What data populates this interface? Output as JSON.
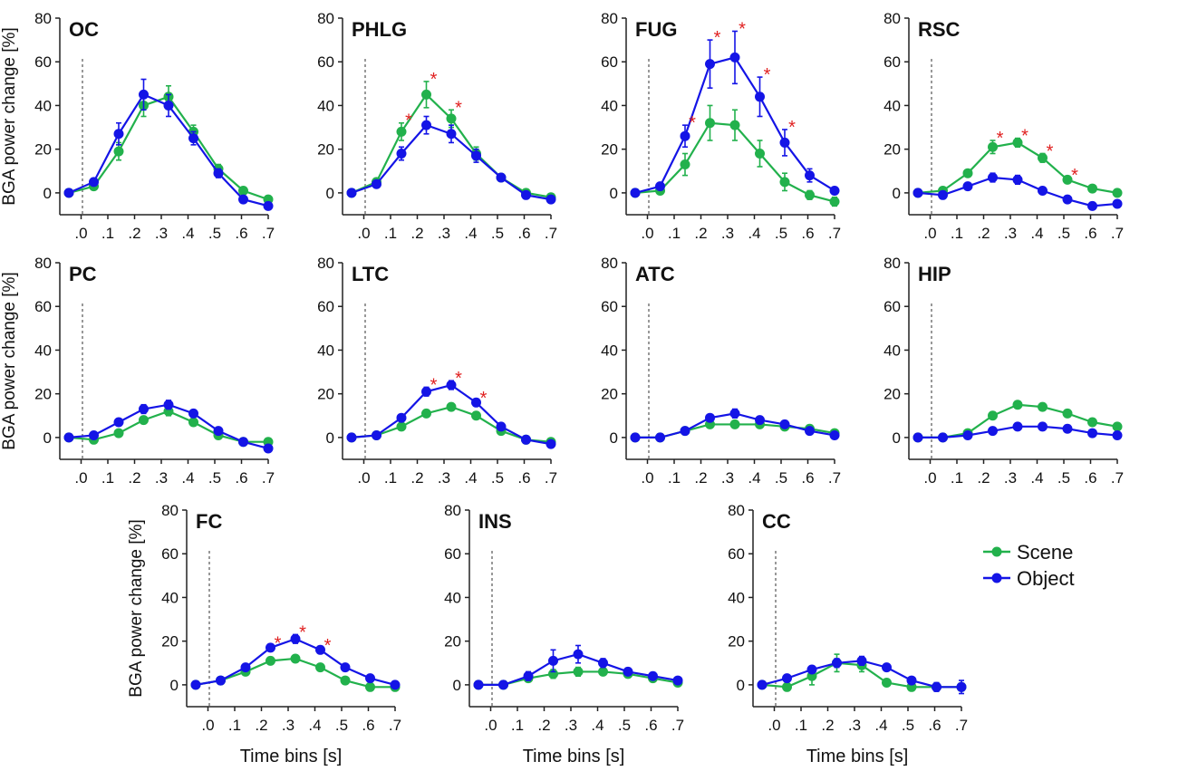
{
  "figure": {
    "ylabel": "BGA power change [%]",
    "xlabel": "Time bins [s]",
    "legend": [
      {
        "name": "Scene",
        "color": "#22b14c"
      },
      {
        "name": "Object",
        "color": "#1414e6"
      }
    ]
  },
  "chart_data": [
    {
      "type": "line",
      "title": "OC",
      "x": [
        0,
        1,
        2,
        3,
        4,
        5,
        6,
        7,
        8
      ],
      "xticks": [
        ".0",
        ".1",
        ".2",
        ".3",
        ".4",
        ".5",
        ".6",
        ".7"
      ],
      "ylim": [
        -10,
        80
      ],
      "yticks": [
        0,
        20,
        40,
        60,
        80
      ],
      "series": [
        {
          "name": "Scene",
          "values": [
            0,
            3,
            19,
            40,
            44,
            28,
            11,
            1,
            -3
          ],
          "errors": [
            1,
            1,
            4,
            5,
            5,
            3,
            2,
            1,
            1
          ]
        },
        {
          "name": "Object",
          "values": [
            0,
            5,
            27,
            45,
            40,
            25,
            9,
            -3,
            -6
          ],
          "errors": [
            1,
            1,
            5,
            7,
            5,
            3,
            2,
            1,
            1
          ]
        }
      ],
      "significant": []
    },
    {
      "type": "line",
      "title": "PHLG",
      "x": [
        0,
        1,
        2,
        3,
        4,
        5,
        6,
        7,
        8
      ],
      "xticks": [
        ".0",
        ".1",
        ".2",
        ".3",
        ".4",
        ".5",
        ".6",
        ".7"
      ],
      "ylim": [
        -10,
        80
      ],
      "yticks": [
        0,
        20,
        40,
        60,
        80
      ],
      "series": [
        {
          "name": "Scene",
          "values": [
            0,
            5,
            28,
            45,
            34,
            18,
            7,
            0,
            -2
          ],
          "errors": [
            1,
            1,
            4,
            6,
            4,
            3,
            1,
            1,
            1
          ]
        },
        {
          "name": "Object",
          "values": [
            0,
            4,
            18,
            31,
            27,
            17,
            7,
            -1,
            -3
          ],
          "errors": [
            1,
            1,
            3,
            4,
            4,
            3,
            1,
            1,
            1
          ]
        }
      ],
      "significant": [
        2,
        3,
        4
      ]
    },
    {
      "type": "line",
      "title": "FUG",
      "x": [
        0,
        1,
        2,
        3,
        4,
        5,
        6,
        7,
        8
      ],
      "xticks": [
        ".0",
        ".1",
        ".2",
        ".3",
        ".4",
        ".5",
        ".6",
        ".7"
      ],
      "ylim": [
        -10,
        80
      ],
      "yticks": [
        0,
        20,
        40,
        60,
        80
      ],
      "series": [
        {
          "name": "Scene",
          "values": [
            0,
            1,
            13,
            32,
            31,
            18,
            5,
            -1,
            -4
          ],
          "errors": [
            1,
            1,
            5,
            8,
            7,
            6,
            4,
            2,
            2
          ]
        },
        {
          "name": "Object",
          "values": [
            0,
            3,
            26,
            59,
            62,
            44,
            23,
            8,
            1
          ],
          "errors": [
            1,
            1,
            5,
            11,
            12,
            9,
            6,
            3,
            1
          ]
        }
      ],
      "significant": [
        2,
        3,
        4,
        5,
        6
      ]
    },
    {
      "type": "line",
      "title": "RSC",
      "x": [
        0,
        1,
        2,
        3,
        4,
        5,
        6,
        7,
        8
      ],
      "xticks": [
        ".0",
        ".1",
        ".2",
        ".3",
        ".4",
        ".5",
        ".6",
        ".7"
      ],
      "ylim": [
        -10,
        80
      ],
      "yticks": [
        0,
        20,
        40,
        60,
        80
      ],
      "series": [
        {
          "name": "Scene",
          "values": [
            0,
            1,
            9,
            21,
            23,
            16,
            6,
            2,
            0
          ],
          "errors": [
            1,
            1,
            1,
            3,
            2,
            2,
            1,
            1,
            1
          ]
        },
        {
          "name": "Object",
          "values": [
            0,
            -1,
            3,
            7,
            6,
            1,
            -3,
            -6,
            -5
          ],
          "errors": [
            1,
            1,
            1,
            2,
            2,
            1,
            1,
            1,
            1
          ]
        }
      ],
      "significant": [
        3,
        4,
        5,
        6
      ]
    },
    {
      "type": "line",
      "title": "PC",
      "x": [
        0,
        1,
        2,
        3,
        4,
        5,
        6,
        7,
        8
      ],
      "xticks": [
        ".0",
        ".1",
        ".2",
        ".3",
        ".4",
        ".5",
        ".6",
        ".7"
      ],
      "ylim": [
        -10,
        80
      ],
      "yticks": [
        0,
        20,
        40,
        60,
        80
      ],
      "series": [
        {
          "name": "Scene",
          "values": [
            0,
            -1,
            2,
            8,
            12,
            7,
            1,
            -2,
            -2
          ],
          "errors": [
            1,
            1,
            1,
            1,
            2,
            1,
            1,
            1,
            1
          ]
        },
        {
          "name": "Object",
          "values": [
            0,
            1,
            7,
            13,
            15,
            11,
            3,
            -2,
            -5
          ],
          "errors": [
            1,
            1,
            1,
            2,
            2,
            1,
            1,
            1,
            1
          ]
        }
      ],
      "significant": []
    },
    {
      "type": "line",
      "title": "LTC",
      "x": [
        0,
        1,
        2,
        3,
        4,
        5,
        6,
        7,
        8
      ],
      "xticks": [
        ".0",
        ".1",
        ".2",
        ".3",
        ".4",
        ".5",
        ".6",
        ".7"
      ],
      "ylim": [
        -10,
        80
      ],
      "yticks": [
        0,
        20,
        40,
        60,
        80
      ],
      "series": [
        {
          "name": "Scene",
          "values": [
            0,
            1,
            5,
            11,
            14,
            10,
            3,
            -1,
            -2
          ],
          "errors": [
            1,
            1,
            1,
            1,
            1,
            1,
            1,
            1,
            1
          ]
        },
        {
          "name": "Object",
          "values": [
            0,
            1,
            9,
            21,
            24,
            16,
            5,
            -1,
            -3
          ],
          "errors": [
            1,
            1,
            1,
            2,
            2,
            1,
            1,
            1,
            1
          ]
        }
      ],
      "significant": [
        3,
        4,
        5
      ]
    },
    {
      "type": "line",
      "title": "ATC",
      "x": [
        0,
        1,
        2,
        3,
        4,
        5,
        6,
        7,
        8
      ],
      "xticks": [
        ".0",
        ".1",
        ".2",
        ".3",
        ".4",
        ".5",
        ".6",
        ".7"
      ],
      "ylim": [
        -10,
        80
      ],
      "yticks": [
        0,
        20,
        40,
        60,
        80
      ],
      "series": [
        {
          "name": "Scene",
          "values": [
            0,
            0,
            3,
            6,
            6,
            6,
            5,
            4,
            2
          ],
          "errors": [
            1,
            1,
            1,
            1,
            1,
            1,
            1,
            1,
            1
          ]
        },
        {
          "name": "Object",
          "values": [
            0,
            0,
            3,
            9,
            11,
            8,
            6,
            3,
            1
          ],
          "errors": [
            1,
            1,
            1,
            1,
            2,
            1,
            1,
            1,
            1
          ]
        }
      ],
      "significant": []
    },
    {
      "type": "line",
      "title": "HIP",
      "x": [
        0,
        1,
        2,
        3,
        4,
        5,
        6,
        7,
        8
      ],
      "xticks": [
        ".0",
        ".1",
        ".2",
        ".3",
        ".4",
        ".5",
        ".6",
        ".7"
      ],
      "ylim": [
        -10,
        80
      ],
      "yticks": [
        0,
        20,
        40,
        60,
        80
      ],
      "series": [
        {
          "name": "Scene",
          "values": [
            0,
            0,
            2,
            10,
            15,
            14,
            11,
            7,
            5
          ],
          "errors": [
            1,
            1,
            1,
            1,
            1,
            1,
            1,
            1,
            1
          ]
        },
        {
          "name": "Object",
          "values": [
            0,
            0,
            1,
            3,
            5,
            5,
            4,
            2,
            1
          ],
          "errors": [
            1,
            1,
            1,
            1,
            1,
            1,
            1,
            1,
            1
          ]
        }
      ],
      "significant": []
    },
    {
      "type": "line",
      "title": "FC",
      "x": [
        0,
        1,
        2,
        3,
        4,
        5,
        6,
        7,
        8
      ],
      "xticks": [
        ".0",
        ".1",
        ".2",
        ".3",
        ".4",
        ".5",
        ".6",
        ".7"
      ],
      "ylim": [
        -10,
        80
      ],
      "yticks": [
        0,
        20,
        40,
        60,
        80
      ],
      "series": [
        {
          "name": "Scene",
          "values": [
            0,
            2,
            6,
            11,
            12,
            8,
            2,
            -1,
            -1
          ],
          "errors": [
            1,
            1,
            1,
            1,
            1,
            1,
            1,
            1,
            1
          ]
        },
        {
          "name": "Object",
          "values": [
            0,
            2,
            8,
            17,
            21,
            16,
            8,
            3,
            0
          ],
          "errors": [
            1,
            1,
            1,
            1,
            2,
            1,
            1,
            1,
            1
          ]
        }
      ],
      "significant": [
        3,
        4,
        5
      ]
    },
    {
      "type": "line",
      "title": "INS",
      "x": [
        0,
        1,
        2,
        3,
        4,
        5,
        6,
        7,
        8
      ],
      "xticks": [
        ".0",
        ".1",
        ".2",
        ".3",
        ".4",
        ".5",
        ".6",
        ".7"
      ],
      "ylim": [
        -10,
        80
      ],
      "yticks": [
        0,
        20,
        40,
        60,
        80
      ],
      "series": [
        {
          "name": "Scene",
          "values": [
            0,
            0,
            3,
            5,
            6,
            6,
            5,
            3,
            1
          ],
          "errors": [
            1,
            1,
            1,
            2,
            2,
            1,
            1,
            1,
            1
          ]
        },
        {
          "name": "Object",
          "values": [
            0,
            0,
            4,
            11,
            14,
            10,
            6,
            4,
            2
          ],
          "errors": [
            1,
            1,
            2,
            5,
            4,
            2,
            1,
            1,
            1
          ]
        }
      ],
      "significant": []
    },
    {
      "type": "line",
      "title": "CC",
      "x": [
        0,
        1,
        2,
        3,
        4,
        5,
        6,
        7,
        8
      ],
      "xticks": [
        ".0",
        ".1",
        ".2",
        ".3",
        ".4",
        ".5",
        ".6",
        ".7"
      ],
      "ylim": [
        -10,
        80
      ],
      "yticks": [
        0,
        20,
        40,
        60,
        80
      ],
      "series": [
        {
          "name": "Scene",
          "values": [
            0,
            -1,
            4,
            10,
            9,
            1,
            -1,
            -1,
            -1
          ],
          "errors": [
            1,
            1,
            4,
            4,
            3,
            1,
            1,
            1,
            1
          ]
        },
        {
          "name": "Object",
          "values": [
            0,
            3,
            7,
            10,
            11,
            8,
            2,
            -1,
            -1
          ],
          "errors": [
            1,
            1,
            1,
            2,
            2,
            1,
            1,
            2,
            3
          ]
        }
      ],
      "significant": []
    }
  ]
}
